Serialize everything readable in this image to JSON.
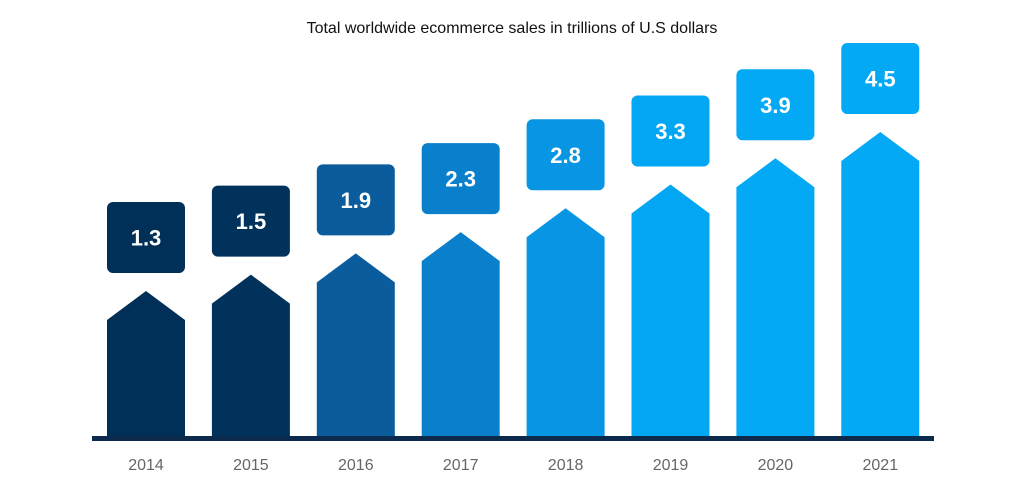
{
  "chart_data": {
    "type": "bar",
    "title": "Total worldwide ecommerce sales in trillions of U.S dollars",
    "xlabel": "",
    "ylabel": "",
    "categories": [
      "2014",
      "2015",
      "2016",
      "2017",
      "2018",
      "2019",
      "2020",
      "2021"
    ],
    "values": [
      1.3,
      1.5,
      1.9,
      2.3,
      2.8,
      3.3,
      3.9,
      4.5
    ],
    "data_labels": [
      "1.3",
      "1.5",
      "1.9",
      "2.3",
      "2.8",
      "3.3",
      "3.9",
      "4.5"
    ],
    "grid": false,
    "colors": [
      "#003057",
      "#00325c",
      "#0b5c9c",
      "#0a7fcc",
      "#0896e4",
      "#03a6f2",
      "#03a9f4",
      "#03a9f4"
    ],
    "axis_color": "#0b2a4c",
    "tick_label_color": "#666666"
  }
}
